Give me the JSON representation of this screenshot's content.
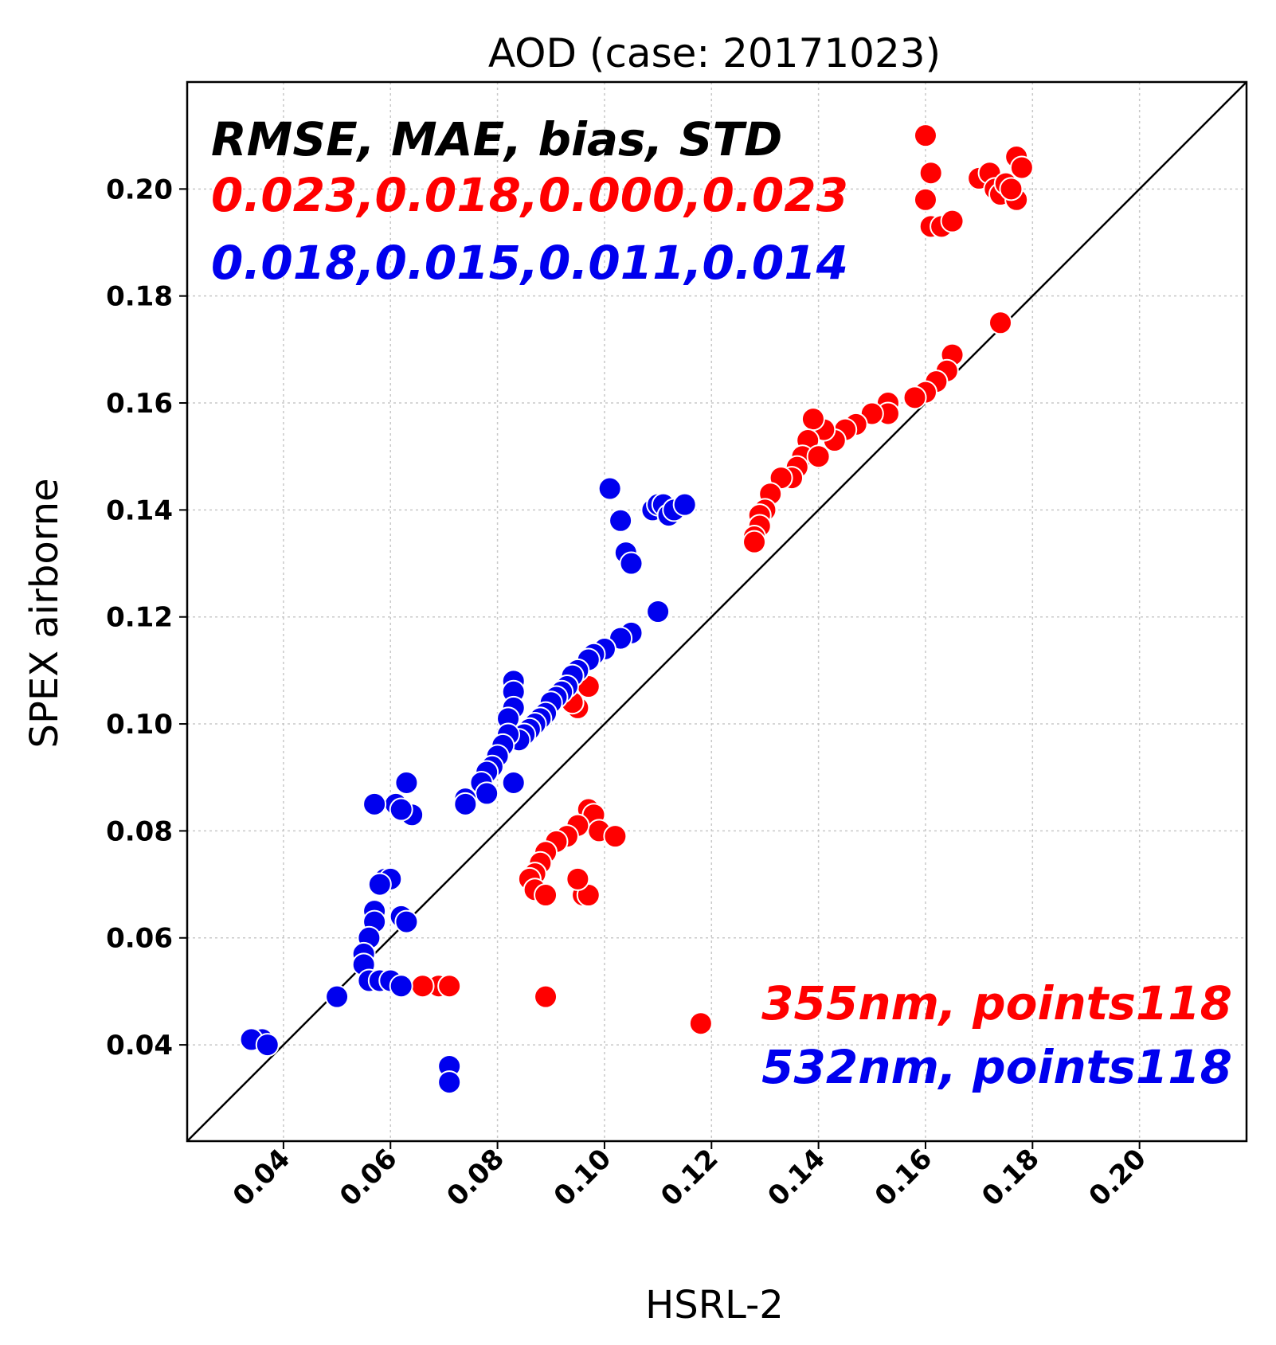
{
  "colors": {
    "red": "#ff0000",
    "blue": "#0000ee",
    "black": "#000000"
  },
  "chart_data": {
    "type": "scatter",
    "title": "AOD (case: 20171023)",
    "xlabel": "HSRL-2",
    "ylabel": "SPEX airborne",
    "xlim": [
      0.022,
      0.22
    ],
    "ylim": [
      0.022,
      0.22
    ],
    "xticks": [
      "0.04",
      "0.06",
      "0.08",
      "0.10",
      "0.12",
      "0.14",
      "0.16",
      "0.18",
      "0.20"
    ],
    "yticks": [
      "0.04",
      "0.06",
      "0.08",
      "0.10",
      "0.12",
      "0.14",
      "0.16",
      "0.18",
      "0.20"
    ],
    "tick_values": [
      0.04,
      0.06,
      0.08,
      0.1,
      0.12,
      0.14,
      0.16,
      0.18,
      0.2
    ],
    "grid": true,
    "reference_line": "1:1",
    "stats_header": "RMSE, MAE, bias, STD",
    "stats_355": "0.023,0.018,0.000,0.023",
    "stats_532": "0.018,0.015,0.011,0.014",
    "legend": [
      "355nm, points118",
      "532nm, points118"
    ],
    "legend_position": "bottom-right",
    "series": [
      {
        "name": "355nm",
        "color": "#ff0000",
        "points": [
          [
            0.16,
            0.21
          ],
          [
            0.161,
            0.203
          ],
          [
            0.16,
            0.198
          ],
          [
            0.161,
            0.193
          ],
          [
            0.163,
            0.193
          ],
          [
            0.165,
            0.194
          ],
          [
            0.17,
            0.202
          ],
          [
            0.172,
            0.203
          ],
          [
            0.173,
            0.2
          ],
          [
            0.174,
            0.199
          ],
          [
            0.175,
            0.201
          ],
          [
            0.177,
            0.206
          ],
          [
            0.178,
            0.204
          ],
          [
            0.177,
            0.198
          ],
          [
            0.176,
            0.2
          ],
          [
            0.174,
            0.175
          ],
          [
            0.165,
            0.169
          ],
          [
            0.164,
            0.166
          ],
          [
            0.162,
            0.164
          ],
          [
            0.16,
            0.162
          ],
          [
            0.158,
            0.161
          ],
          [
            0.153,
            0.16
          ],
          [
            0.153,
            0.158
          ],
          [
            0.15,
            0.158
          ],
          [
            0.147,
            0.156
          ],
          [
            0.145,
            0.155
          ],
          [
            0.143,
            0.153
          ],
          [
            0.141,
            0.155
          ],
          [
            0.139,
            0.157
          ],
          [
            0.138,
            0.153
          ],
          [
            0.137,
            0.15
          ],
          [
            0.136,
            0.148
          ],
          [
            0.135,
            0.146
          ],
          [
            0.133,
            0.146
          ],
          [
            0.131,
            0.143
          ],
          [
            0.13,
            0.14
          ],
          [
            0.129,
            0.139
          ],
          [
            0.129,
            0.137
          ],
          [
            0.128,
            0.135
          ],
          [
            0.128,
            0.134
          ],
          [
            0.14,
            0.15
          ],
          [
            0.097,
            0.107
          ],
          [
            0.095,
            0.103
          ],
          [
            0.094,
            0.104
          ],
          [
            0.097,
            0.084
          ],
          [
            0.098,
            0.083
          ],
          [
            0.099,
            0.08
          ],
          [
            0.102,
            0.079
          ],
          [
            0.095,
            0.081
          ],
          [
            0.093,
            0.079
          ],
          [
            0.091,
            0.078
          ],
          [
            0.089,
            0.076
          ],
          [
            0.088,
            0.074
          ],
          [
            0.087,
            0.072
          ],
          [
            0.086,
            0.071
          ],
          [
            0.087,
            0.069
          ],
          [
            0.089,
            0.068
          ],
          [
            0.096,
            0.068
          ],
          [
            0.097,
            0.068
          ],
          [
            0.095,
            0.071
          ],
          [
            0.069,
            0.051
          ],
          [
            0.071,
            0.051
          ],
          [
            0.066,
            0.051
          ],
          [
            0.089,
            0.049
          ],
          [
            0.118,
            0.044
          ]
        ]
      },
      {
        "name": "532nm",
        "color": "#0000ee",
        "points": [
          [
            0.101,
            0.144
          ],
          [
            0.103,
            0.138
          ],
          [
            0.104,
            0.132
          ],
          [
            0.105,
            0.13
          ],
          [
            0.109,
            0.14
          ],
          [
            0.11,
            0.141
          ],
          [
            0.111,
            0.141
          ],
          [
            0.112,
            0.139
          ],
          [
            0.113,
            0.14
          ],
          [
            0.115,
            0.141
          ],
          [
            0.11,
            0.121
          ],
          [
            0.105,
            0.117
          ],
          [
            0.103,
            0.116
          ],
          [
            0.1,
            0.114
          ],
          [
            0.098,
            0.113
          ],
          [
            0.097,
            0.112
          ],
          [
            0.095,
            0.11
          ],
          [
            0.094,
            0.109
          ],
          [
            0.093,
            0.107
          ],
          [
            0.092,
            0.106
          ],
          [
            0.091,
            0.105
          ],
          [
            0.09,
            0.104
          ],
          [
            0.089,
            0.102
          ],
          [
            0.088,
            0.101
          ],
          [
            0.087,
            0.1
          ],
          [
            0.086,
            0.099
          ],
          [
            0.085,
            0.098
          ],
          [
            0.084,
            0.097
          ],
          [
            0.083,
            0.108
          ],
          [
            0.083,
            0.106
          ],
          [
            0.083,
            0.103
          ],
          [
            0.082,
            0.101
          ],
          [
            0.082,
            0.098
          ],
          [
            0.081,
            0.096
          ],
          [
            0.08,
            0.094
          ],
          [
            0.079,
            0.092
          ],
          [
            0.078,
            0.091
          ],
          [
            0.077,
            0.089
          ],
          [
            0.078,
            0.087
          ],
          [
            0.083,
            0.089
          ],
          [
            0.074,
            0.086
          ],
          [
            0.074,
            0.085
          ],
          [
            0.063,
            0.089
          ],
          [
            0.064,
            0.083
          ],
          [
            0.061,
            0.085
          ],
          [
            0.062,
            0.084
          ],
          [
            0.057,
            0.085
          ],
          [
            0.059,
            0.071
          ],
          [
            0.06,
            0.071
          ],
          [
            0.058,
            0.07
          ],
          [
            0.057,
            0.065
          ],
          [
            0.057,
            0.063
          ],
          [
            0.056,
            0.06
          ],
          [
            0.062,
            0.064
          ],
          [
            0.063,
            0.063
          ],
          [
            0.055,
            0.057
          ],
          [
            0.055,
            0.055
          ],
          [
            0.056,
            0.052
          ],
          [
            0.058,
            0.052
          ],
          [
            0.06,
            0.052
          ],
          [
            0.062,
            0.051
          ],
          [
            0.05,
            0.049
          ],
          [
            0.036,
            0.041
          ],
          [
            0.034,
            0.041
          ],
          [
            0.037,
            0.04
          ],
          [
            0.071,
            0.036
          ],
          [
            0.071,
            0.033
          ]
        ]
      }
    ]
  }
}
